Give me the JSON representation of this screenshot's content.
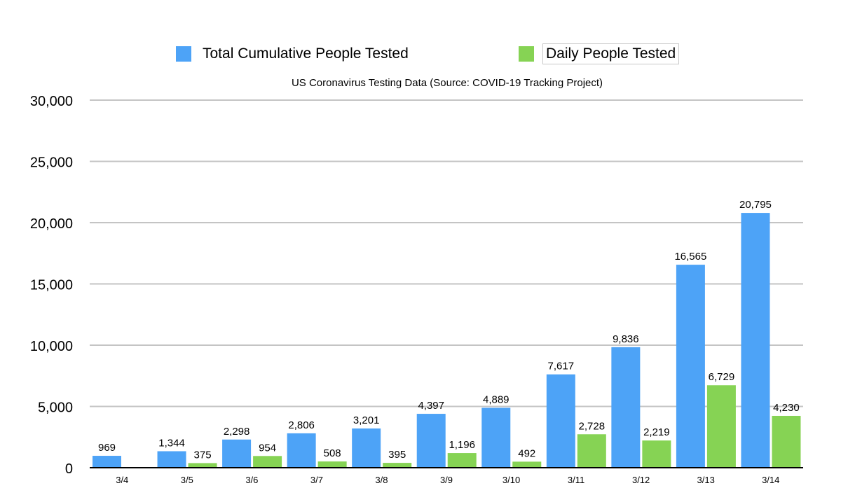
{
  "chart_data": {
    "type": "bar",
    "title": "US Coronavirus Testing Data (Source: COVID-19 Tracking Project)",
    "xlabel": "",
    "ylabel": "",
    "ylim": [
      0,
      30000
    ],
    "yticks": [
      0,
      5000,
      10000,
      15000,
      20000,
      25000,
      30000
    ],
    "ytick_labels": [
      "0",
      "5,000",
      "10,000",
      "15,000",
      "20,000",
      "25,000",
      "30,000"
    ],
    "grid": true,
    "legend_position": "top",
    "categories": [
      "3/4",
      "3/5",
      "3/6",
      "3/7",
      "3/8",
      "3/9",
      "3/10",
      "3/11",
      "3/12",
      "3/13",
      "3/14"
    ],
    "series": [
      {
        "name": "Total Cumulative People Tested",
        "color": "#4DA3F7",
        "values": [
          969,
          1344,
          2298,
          2806,
          3201,
          4397,
          4889,
          7617,
          9836,
          16565,
          20795
        ],
        "labels": [
          "969",
          "1,344",
          "2,298",
          "2,806",
          "3,201",
          "4,397",
          "4,889",
          "7,617",
          "9,836",
          "16,565",
          "20,795"
        ]
      },
      {
        "name": "Daily People Tested",
        "color": "#86D354",
        "values": [
          0,
          375,
          954,
          508,
          395,
          1196,
          492,
          2728,
          2219,
          6729,
          4230
        ],
        "labels": [
          "",
          "375",
          "954",
          "508",
          "395",
          "1,196",
          "492",
          "2,728",
          "2,219",
          "6,729",
          "4,230"
        ]
      }
    ]
  }
}
